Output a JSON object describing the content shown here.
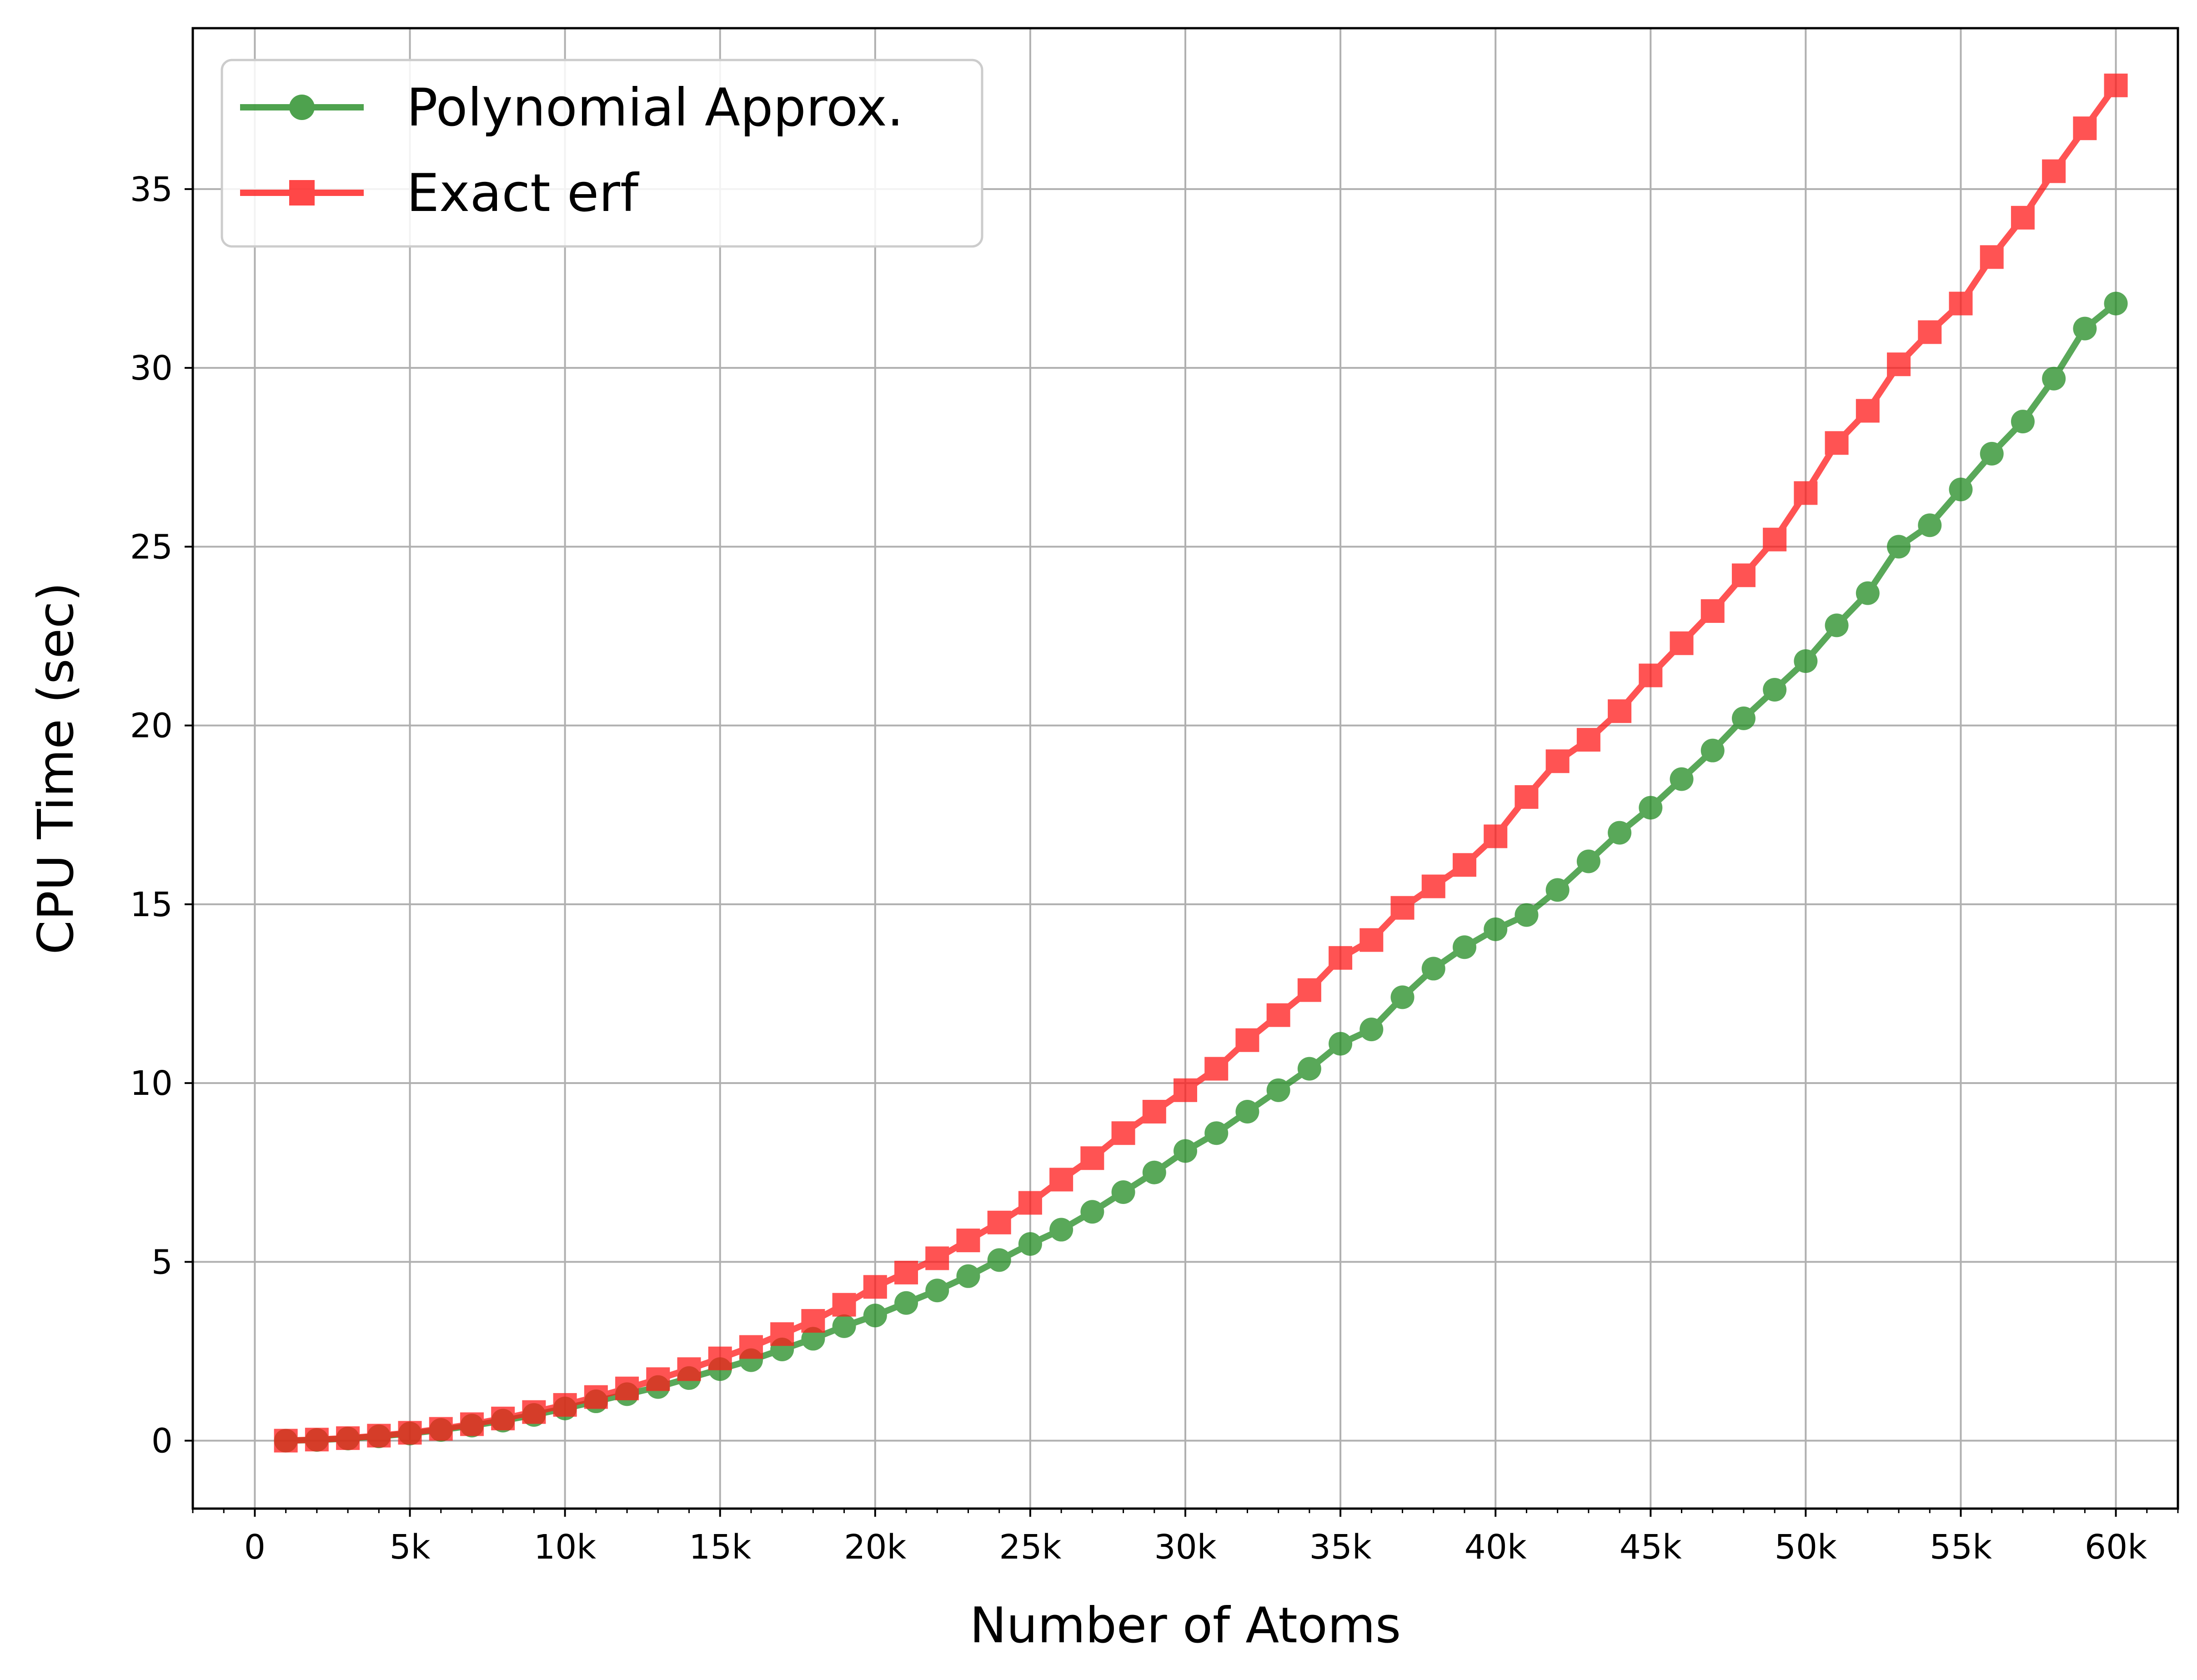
{
  "chart_data": {
    "type": "line",
    "title": "",
    "xlabel": "Number of Atoms",
    "ylabel": "CPU Time (sec)",
    "xlim": [
      -2000,
      62000
    ],
    "ylim": [
      -1.9,
      39.5
    ],
    "grid": true,
    "legend_position": "top-left",
    "x_ticks": [
      0,
      5000,
      10000,
      15000,
      20000,
      25000,
      30000,
      35000,
      40000,
      45000,
      50000,
      55000,
      60000
    ],
    "x_tick_labels": [
      "0",
      "5k",
      "10k",
      "15k",
      "20k",
      "25k",
      "30k",
      "35k",
      "40k",
      "45k",
      "50k",
      "55k",
      "60k"
    ],
    "y_ticks": [
      0,
      5,
      10,
      15,
      20,
      25,
      30,
      35
    ],
    "y_tick_labels": [
      "0",
      "5",
      "10",
      "15",
      "20",
      "25",
      "30",
      "35"
    ],
    "x": [
      1000,
      2000,
      3000,
      4000,
      5000,
      6000,
      7000,
      8000,
      9000,
      10000,
      11000,
      12000,
      13000,
      14000,
      15000,
      16000,
      17000,
      18000,
      19000,
      20000,
      21000,
      22000,
      23000,
      24000,
      25000,
      26000,
      27000,
      28000,
      29000,
      30000,
      31000,
      32000,
      33000,
      34000,
      35000,
      36000,
      37000,
      38000,
      39000,
      40000,
      41000,
      42000,
      43000,
      44000,
      45000,
      46000,
      47000,
      48000,
      49000,
      50000,
      51000,
      52000,
      53000,
      54000,
      55000,
      56000,
      57000,
      58000,
      59000,
      60000
    ],
    "series": [
      {
        "name": "Polynomial Approx.",
        "color": "#228B22",
        "marker": "circle",
        "values": [
          0.0,
          0.02,
          0.06,
          0.12,
          0.2,
          0.3,
          0.42,
          0.56,
          0.72,
          0.9,
          1.1,
          1.3,
          1.5,
          1.75,
          2.0,
          2.25,
          2.55,
          2.85,
          3.2,
          3.5,
          3.85,
          4.2,
          4.6,
          5.05,
          5.5,
          5.9,
          6.4,
          6.95,
          7.5,
          8.1,
          8.6,
          9.2,
          9.8,
          10.4,
          11.1,
          11.5,
          12.4,
          13.2,
          13.8,
          14.3,
          14.7,
          15.4,
          16.2,
          17.0,
          17.7,
          18.5,
          19.3,
          20.2,
          21.0,
          21.8,
          22.8,
          23.7,
          25.0,
          25.6,
          26.6,
          27.6,
          28.5,
          29.7,
          31.1,
          31.8
        ]
      },
      {
        "name": "Exact erf",
        "color": "#FF1A1A",
        "marker": "square",
        "values": [
          0.0,
          0.03,
          0.07,
          0.14,
          0.22,
          0.33,
          0.46,
          0.62,
          0.8,
          1.0,
          1.22,
          1.46,
          1.72,
          2.0,
          2.3,
          2.62,
          2.98,
          3.35,
          3.8,
          4.3,
          4.7,
          5.1,
          5.6,
          6.1,
          6.65,
          7.3,
          7.9,
          8.6,
          9.2,
          9.8,
          10.4,
          11.2,
          11.9,
          12.6,
          13.5,
          14.0,
          14.9,
          15.5,
          16.1,
          16.9,
          18.0,
          19.0,
          19.6,
          20.4,
          21.4,
          22.3,
          23.2,
          24.2,
          25.2,
          26.5,
          27.9,
          28.8,
          30.1,
          31.0,
          31.8,
          33.1,
          34.2,
          35.5,
          36.7,
          37.9
        ]
      }
    ]
  }
}
